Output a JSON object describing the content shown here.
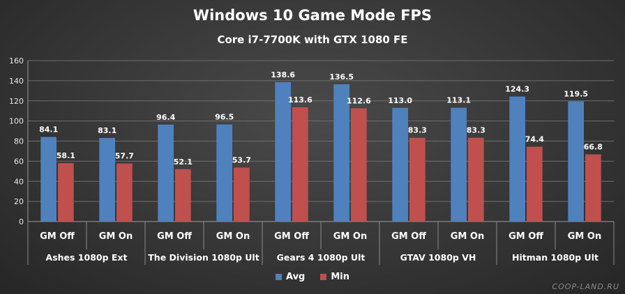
{
  "chart_data": {
    "type": "bar",
    "title": "Windows 10 Game Mode FPS",
    "subtitle": "Core i7-7700K with GTX 1080 FE",
    "ylim": [
      0,
      160
    ],
    "yticks": [
      0,
      20,
      40,
      60,
      80,
      100,
      120,
      140,
      160
    ],
    "grid": true,
    "legend_position": "bottom",
    "categories": [
      "GM Off",
      "GM On",
      "GM Off",
      "GM On",
      "GM Off",
      "GM On",
      "GM Off",
      "GM On",
      "GM Off",
      "GM On"
    ],
    "groups": [
      "Ashes 1080p Ext",
      "The Division 1080p Ult",
      "Gears 4 1080p Ult",
      "GTAV 1080p VH",
      "Hitman 1080p Ult"
    ],
    "series": [
      {
        "name": "Avg",
        "color": "#4f81bd",
        "values": [
          84.1,
          83.1,
          96.4,
          96.5,
          138.6,
          136.5,
          113.0,
          113.1,
          124.3,
          119.5
        ]
      },
      {
        "name": "Min",
        "color": "#c0504d",
        "values": [
          58.1,
          57.7,
          52.1,
          53.7,
          113.6,
          112.6,
          83.3,
          83.3,
          74.4,
          66.8
        ]
      }
    ]
  },
  "watermark": "COOP-LAND.RU"
}
